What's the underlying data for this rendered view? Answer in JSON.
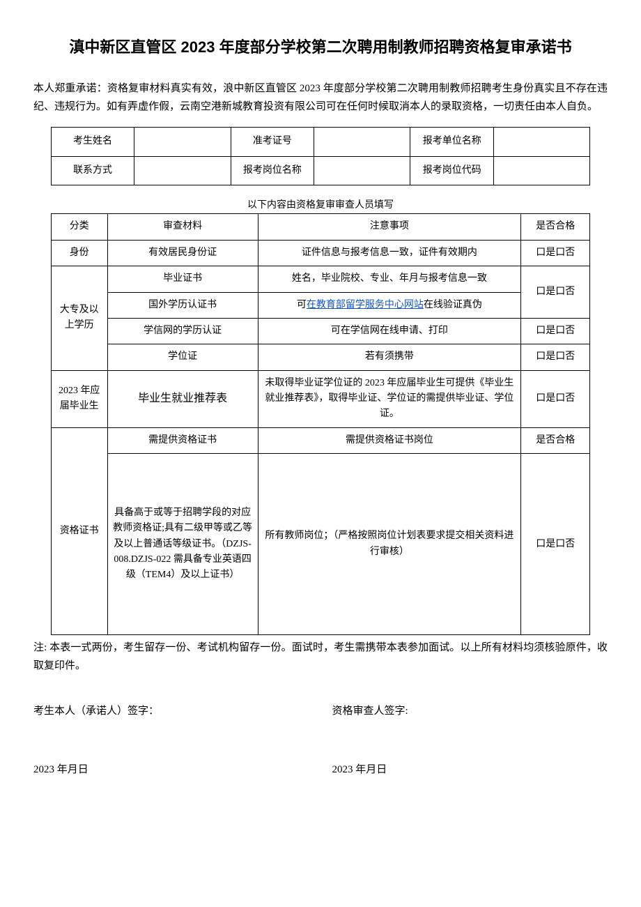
{
  "title": "滇中新区直管区 2023 年度部分学校第二次聘用制教师招聘资格复审承诺书",
  "intro": "本人郑重承诺：资格复审材料真实有效，浪中新区直管区 2023 年度部分学校第二次聘用制教师招聘考生身份真实且不存在违纪、违规行为。如有弄虚作假，云南空港新城教育投资有限公司可在任何时候取消本人的录取资格，一切责任由本人自负。",
  "info_table": {
    "row1": {
      "label1": "考生姓名",
      "label2": "准考证号",
      "label3": "报考单位名称"
    },
    "row2": {
      "label1": "联系方式",
      "label2": "报考岗位名称",
      "label3": "报考岗位代码"
    }
  },
  "subheader": "以下内容由资格复审审查人员填写",
  "review_table": {
    "header": {
      "col1": "分类",
      "col2": "审查材料",
      "col3": "注意事项",
      "col4": "是否合格"
    },
    "rows": {
      "identity": {
        "category": "身份",
        "material": "有效居民身份证",
        "notes": "证件信息与报考信息一致，证件有效期内",
        "qualified": "口是口否"
      },
      "edu1": {
        "category": "大专及以上学历",
        "material": "毕业证书",
        "notes": "姓名，毕业院校、专业、年月与报考信息一致",
        "qualified": "口是口否"
      },
      "edu2": {
        "material": "国外学历认证书",
        "notes_prefix": "可",
        "notes_link": "在教育部留学服务中心网站",
        "notes_suffix": "在线验证真伪"
      },
      "edu3": {
        "material": "学信网的学历认证",
        "notes": "可在学信网在线申请、打印",
        "qualified": "口是口否"
      },
      "edu4": {
        "material": "学位证",
        "notes": "若有须携带",
        "qualified": "口是口否"
      },
      "grad2023": {
        "category": "2023 年应届毕业生",
        "material": "毕业生就业推荐表",
        "notes": "未取得毕业证学位证的 2023 年应届毕业生可提供《毕业生就业推荐表》，取得毕业证、学位证的需提供毕业证、学位证。",
        "qualified": "口是口否"
      },
      "cert_header": {
        "material": "需提供资格证书",
        "notes": "需提供资格证书岗位",
        "qualified": "是否合格"
      },
      "cert": {
        "category": "资格证书",
        "material": "具备高于或等于招聘学段的对应教师资格证;具有二级甲等或乙等及以上普通话等级证书。（DZJS-008.DZJS-022 需具备专业英语四级（TEM4）及以上证书）",
        "notes": "所有教师岗位；（严格按照岗位计划表要求提交相关资料进行审核）",
        "qualified": "口是口否"
      }
    }
  },
  "footnote": "注: 本表一式两份，考生留存一份、考试机构留存一份。面试时，考生需携带本表参加面试。以上所有材料均须核验原件，收取复印件。",
  "signatures": {
    "candidate_label": "考生本人（承诺人）签字：",
    "reviewer_label": "资格审查人签字:",
    "candidate_date": "2023 年月日",
    "reviewer_date": "2023 年月日"
  },
  "colors": {
    "text": "#000000",
    "link": "#1155cc",
    "background": "#ffffff",
    "border": "#000000"
  }
}
